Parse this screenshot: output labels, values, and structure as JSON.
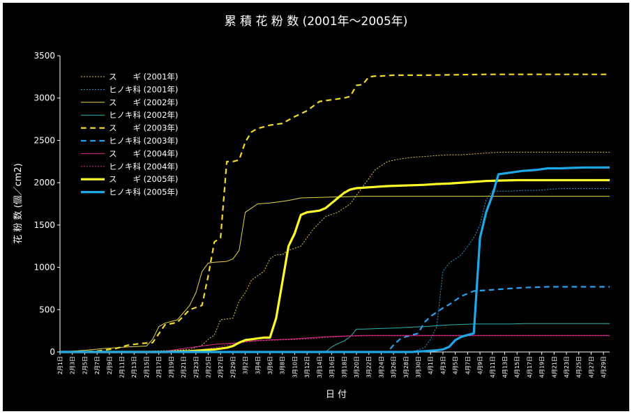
{
  "chart_data": {
    "type": "line",
    "title": "累 積 花 粉 数 (2001年〜2005年)",
    "xlabel": "日 付",
    "ylabel": "花 粉 数 (個／cm2)",
    "ylim": [
      0,
      3500
    ],
    "yticks": [
      0,
      500,
      1000,
      1500,
      2000,
      2500,
      3000,
      3500
    ],
    "x_range_days": [
      1,
      90
    ],
    "x_tick_days": [
      1,
      3,
      5,
      7,
      9,
      11,
      13,
      15,
      17,
      19,
      21,
      23,
      25,
      27,
      29,
      31,
      33,
      35,
      37,
      39,
      41,
      43,
      45,
      47,
      49,
      51,
      53,
      55,
      57,
      59,
      61,
      63,
      65,
      67,
      69,
      71,
      73,
      75,
      77,
      79,
      81,
      83,
      85,
      87,
      89
    ],
    "x_tick_labels": [
      "2月1日",
      "2月3日",
      "2月5日",
      "2月7日",
      "2月9日",
      "2月11日",
      "2月13日",
      "2月15日",
      "2月17日",
      "2月19日",
      "2月21日",
      "2月23日",
      "2月25日",
      "2月27日",
      "2月29日",
      "3月2日",
      "3月4日",
      "3月6日",
      "3月8日",
      "3月10日",
      "3月12日",
      "3月14日",
      "3月16日",
      "3月18日",
      "3月20日",
      "3月22日",
      "3月24日",
      "3月26日",
      "3月28日",
      "3月30日",
      "4月1日",
      "4月3日",
      "4月5日",
      "4月7日",
      "4月9日",
      "4月11日",
      "4月13日",
      "4月15日",
      "4月17日",
      "4月19日",
      "4月21日",
      "4月23日",
      "4月25日",
      "4月27日",
      "4月29日"
    ],
    "legend_position": "top-left",
    "grid": false,
    "series": [
      {
        "name": "ス　　ギ (2001年)",
        "color": "#e6c84a",
        "style": "dotted",
        "width": 1,
        "x": [
          1,
          8,
          12,
          16,
          18,
          20,
          22,
          24,
          25,
          26,
          27,
          28,
          29,
          30,
          31,
          32,
          33,
          34,
          35,
          36,
          37,
          38,
          40,
          42,
          44,
          46,
          48,
          50,
          52,
          54,
          56,
          58,
          60,
          62,
          64,
          66,
          68,
          70,
          72,
          74,
          76,
          78,
          80,
          82,
          84,
          86,
          88,
          90
        ],
        "y": [
          0,
          0,
          5,
          10,
          15,
          20,
          30,
          80,
          150,
          200,
          380,
          390,
          400,
          600,
          700,
          850,
          900,
          950,
          1100,
          1150,
          1150,
          1200,
          1250,
          1450,
          1600,
          1650,
          1750,
          1950,
          2150,
          2250,
          2280,
          2300,
          2310,
          2320,
          2330,
          2330,
          2340,
          2350,
          2360,
          2360,
          2360,
          2360,
          2360,
          2360,
          2360,
          2360,
          2360,
          2360
        ]
      },
      {
        "name": "ヒノキ科 (2001年)",
        "color": "#2aa0d8",
        "style": "dotted",
        "width": 1,
        "x": [
          1,
          50,
          55,
          58,
          60,
          61,
          62,
          63,
          64,
          65,
          66,
          67,
          68,
          69,
          70,
          71,
          72,
          74,
          76,
          78,
          80,
          82,
          84,
          86,
          88,
          90
        ],
        "y": [
          0,
          0,
          0,
          0,
          50,
          150,
          300,
          950,
          1050,
          1100,
          1150,
          1250,
          1350,
          1500,
          1800,
          1900,
          1900,
          1900,
          1910,
          1910,
          1920,
          1930,
          1930,
          1930,
          1930,
          1930
        ]
      },
      {
        "name": "ス　　ギ (2002年)",
        "color": "#e6d84a",
        "style": "solid",
        "width": 1,
        "x": [
          1,
          5,
          8,
          12,
          15,
          16,
          17,
          18,
          20,
          22,
          23,
          24,
          25,
          26,
          28,
          29,
          30,
          31,
          32,
          33,
          35,
          36,
          38,
          40,
          45,
          50,
          60,
          70,
          80,
          90
        ],
        "y": [
          0,
          20,
          40,
          60,
          70,
          150,
          300,
          340,
          380,
          550,
          700,
          950,
          1050,
          1060,
          1070,
          1100,
          1200,
          1650,
          1700,
          1750,
          1760,
          1770,
          1790,
          1820,
          1830,
          1840,
          1840,
          1840,
          1840,
          1840
        ]
      },
      {
        "name": "ヒノキ科 (2002年)",
        "color": "#2ab8b0",
        "style": "solid",
        "width": 1,
        "x": [
          1,
          44,
          45,
          46,
          47,
          48,
          49,
          50,
          52,
          54,
          56,
          58,
          60,
          62,
          64,
          66,
          68,
          70,
          72,
          74,
          76,
          78,
          80,
          82,
          84,
          86,
          88,
          90
        ],
        "y": [
          0,
          0,
          60,
          100,
          130,
          180,
          270,
          270,
          275,
          280,
          285,
          295,
          300,
          310,
          320,
          325,
          330,
          330,
          330,
          330,
          335,
          335,
          335,
          335,
          335,
          335,
          335,
          335
        ]
      },
      {
        "name": "ス　　ギ (2003年)",
        "color": "#f2dc2a",
        "style": "dashed",
        "width": 2.2,
        "x": [
          1,
          4,
          7,
          10,
          12,
          14,
          16,
          18,
          20,
          22,
          24,
          25,
          26,
          27,
          28,
          29,
          30,
          31,
          32,
          33,
          35,
          37,
          39,
          41,
          43,
          45,
          47,
          48,
          49,
          50,
          51,
          52,
          53,
          55,
          60,
          70,
          80,
          90
        ],
        "y": [
          0,
          0,
          10,
          40,
          80,
          100,
          110,
          320,
          350,
          500,
          550,
          900,
          1300,
          1350,
          2250,
          2250,
          2270,
          2480,
          2600,
          2640,
          2680,
          2700,
          2780,
          2850,
          2960,
          2980,
          3000,
          3020,
          3150,
          3160,
          3250,
          3260,
          3260,
          3270,
          3270,
          3280,
          3280,
          3280
        ]
      },
      {
        "name": "ヒノキ科 (2003年)",
        "color": "#2aa0f0",
        "style": "dashed",
        "width": 2.2,
        "x": [
          1,
          54,
          55,
          56,
          57,
          58,
          59,
          60,
          61,
          62,
          63,
          64,
          65,
          66,
          67,
          68,
          70,
          72,
          74,
          76,
          78,
          80,
          82,
          84,
          86,
          88,
          90
        ],
        "y": [
          0,
          0,
          80,
          150,
          180,
          200,
          220,
          350,
          420,
          470,
          520,
          560,
          610,
          660,
          690,
          720,
          730,
          740,
          750,
          760,
          765,
          770,
          770,
          770,
          770,
          770,
          770
        ]
      },
      {
        "name": "ス　　ギ (2004年)",
        "color": "#e0308a",
        "style": "solid",
        "width": 1,
        "x": [
          1,
          15,
          18,
          20,
          22,
          24,
          26,
          28,
          30,
          32,
          34,
          36,
          38,
          40,
          42,
          44,
          46,
          48,
          50,
          52,
          60,
          70,
          80,
          90
        ],
        "y": [
          0,
          0,
          10,
          30,
          50,
          70,
          90,
          100,
          110,
          130,
          140,
          145,
          150,
          160,
          170,
          180,
          185,
          190,
          195,
          195,
          195,
          195,
          195,
          195
        ]
      },
      {
        "name": "ヒノキ科 (2004年)",
        "color": "#e0308a",
        "style": "dotted",
        "width": 1,
        "x": [
          1,
          20,
          22,
          24,
          26,
          28,
          30,
          32,
          34,
          36,
          38,
          40,
          42,
          44,
          46,
          48,
          50,
          52,
          60,
          70,
          80,
          90
        ],
        "y": [
          0,
          5,
          15,
          30,
          50,
          80,
          110,
          125,
          135,
          140,
          145,
          150,
          160,
          170,
          180,
          185,
          190,
          190,
          190,
          190,
          190,
          190
        ]
      },
      {
        "name": "ス　　ギ (2005年)",
        "color": "#ffff28",
        "style": "solid",
        "width": 3.2,
        "x": [
          1,
          18,
          22,
          26,
          28,
          29,
          30,
          31,
          32,
          33,
          34,
          35,
          36,
          37,
          38,
          39,
          40,
          41,
          42,
          43,
          44,
          45,
          46,
          47,
          48,
          49,
          50,
          52,
          54,
          56,
          58,
          60,
          62,
          64,
          66,
          68,
          70,
          72,
          75,
          80,
          85,
          90
        ],
        "y": [
          0,
          0,
          10,
          30,
          50,
          70,
          110,
          140,
          150,
          160,
          170,
          170,
          400,
          820,
          1250,
          1400,
          1620,
          1650,
          1660,
          1670,
          1700,
          1760,
          1820,
          1880,
          1920,
          1935,
          1940,
          1950,
          1960,
          1965,
          1970,
          1975,
          1985,
          1990,
          2000,
          2010,
          2020,
          2025,
          2030,
          2030,
          2030,
          2030
        ]
      },
      {
        "name": "ヒノキ科 (2005年)",
        "color": "#1ea8e8",
        "style": "solid",
        "width": 3.2,
        "x": [
          1,
          58,
          60,
          62,
          63,
          64,
          65,
          66,
          67,
          68,
          69,
          70,
          71,
          72,
          74,
          76,
          78,
          80,
          82,
          84,
          86,
          88,
          90
        ],
        "y": [
          0,
          0,
          10,
          20,
          30,
          60,
          140,
          180,
          200,
          220,
          1350,
          1650,
          1850,
          2100,
          2120,
          2140,
          2150,
          2170,
          2170,
          2175,
          2180,
          2180,
          2180
        ]
      }
    ]
  }
}
